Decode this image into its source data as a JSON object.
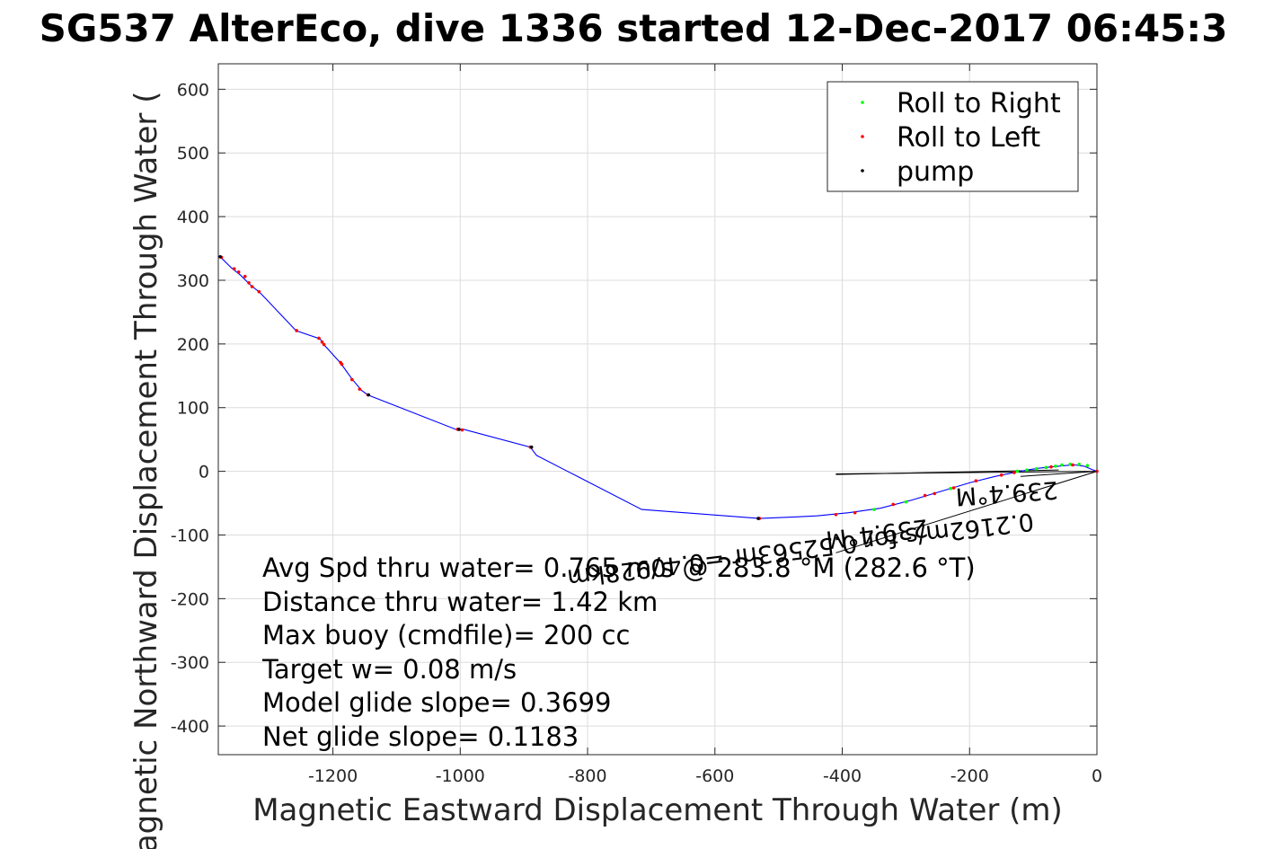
{
  "chart_data": {
    "type": "line",
    "title": "SG537 AlterEco, dive 1336 started 12-Dec-2017 06:45:3",
    "xlabel": "Magnetic Eastward Displacement Through Water (m)",
    "ylabel": "Magnetic Northward Displacement Through Water (",
    "xlim": [
      -1380,
      0
    ],
    "ylim": [
      -445,
      640
    ],
    "xticks": [
      -1200,
      -1000,
      -800,
      -600,
      -400,
      -200,
      0
    ],
    "yticks": [
      600,
      500,
      400,
      300,
      200,
      100,
      0,
      -100,
      -200,
      -300,
      -400
    ],
    "grid": true,
    "legend_position": "top-right",
    "legend": [
      {
        "label": "Roll to Right",
        "color": "#00ff00"
      },
      {
        "label": "Roll to Left",
        "color": "#ff0000"
      },
      {
        "label": "pump",
        "color": "#000000"
      }
    ],
    "track_color": "#0000ff",
    "track": [
      [
        0,
        0
      ],
      [
        -8,
        3
      ],
      [
        -20,
        8
      ],
      [
        -35,
        10
      ],
      [
        -50,
        9
      ],
      [
        -70,
        7
      ],
      [
        -90,
        5
      ],
      [
        -110,
        2
      ],
      [
        -130,
        -2
      ],
      [
        -160,
        -8
      ],
      [
        -200,
        -18
      ],
      [
        -240,
        -30
      ],
      [
        -290,
        -45
      ],
      [
        -340,
        -58
      ],
      [
        -390,
        -65
      ],
      [
        -440,
        -70
      ],
      [
        -480,
        -72
      ],
      [
        -530,
        -74
      ],
      [
        -715,
        -60
      ],
      [
        -880,
        25
      ],
      [
        -890,
        38
      ],
      [
        -995,
        66
      ],
      [
        -1005,
        65
      ],
      [
        -1145,
        120
      ],
      [
        -1155,
        127
      ],
      [
        -1170,
        145
      ],
      [
        -1188,
        170
      ],
      [
        -1215,
        200
      ],
      [
        -1220,
        208
      ],
      [
        -1258,
        221
      ],
      [
        -1315,
        281
      ],
      [
        -1330,
        293
      ],
      [
        -1345,
        308
      ],
      [
        -1360,
        320
      ],
      [
        -1375,
        335
      ],
      [
        -1380,
        338
      ]
    ],
    "roll_right": [
      [
        -15,
        9
      ],
      [
        -28,
        11
      ],
      [
        -42,
        11
      ],
      [
        -55,
        10
      ],
      [
        -65,
        8
      ],
      [
        -80,
        6
      ],
      [
        -95,
        4
      ],
      [
        -110,
        2
      ],
      [
        -125,
        0
      ],
      [
        -230,
        -27
      ],
      [
        -300,
        -48
      ],
      [
        -350,
        -60
      ]
    ],
    "roll_left": [
      [
        -1375,
        336
      ],
      [
        -1355,
        318
      ],
      [
        -1348,
        313
      ],
      [
        -1338,
        306
      ],
      [
        -1332,
        296
      ],
      [
        -1327,
        290
      ],
      [
        -1316,
        282
      ],
      [
        -1257,
        221
      ],
      [
        -1222,
        209
      ],
      [
        -1217,
        203
      ],
      [
        -1214,
        199
      ],
      [
        -1188,
        171
      ],
      [
        -1186,
        168
      ],
      [
        -1170,
        144
      ],
      [
        -1158,
        129
      ],
      [
        -1145,
        120
      ],
      [
        -1004,
        66
      ],
      [
        -997,
        65
      ],
      [
        -890,
        38
      ],
      [
        -530,
        -74
      ],
      [
        -410,
        -68
      ],
      [
        -380,
        -65
      ],
      [
        -320,
        -52
      ],
      [
        -270,
        -38
      ],
      [
        -255,
        -35
      ],
      [
        -225,
        -26
      ],
      [
        -190,
        -15
      ],
      [
        -150,
        -6
      ],
      [
        -130,
        -2
      ],
      [
        -72,
        7
      ],
      [
        -38,
        10
      ],
      [
        0,
        0
      ]
    ],
    "pump": [
      [
        -1002,
        66
      ],
      [
        -888,
        38
      ],
      [
        -532,
        -74
      ],
      [
        -1377,
        337
      ],
      [
        -1144,
        120
      ]
    ],
    "current_lines": [
      [
        [
          0,
          0
        ],
        [
          -410,
          -4
        ]
      ],
      [
        [
          0,
          0
        ],
        [
          -410,
          -128
        ]
      ],
      [
        [
          0,
          0
        ],
        [
          -120,
          -8
        ]
      ],
      [
        [
          -60,
          2
        ],
        [
          -410,
          -5
        ]
      ]
    ],
    "annotations_flipped": [
      "0.2162m/s for 0.52563hr =0.40928km",
      "239.4°M"
    ],
    "text_box": [
      "Avg Spd thru water=  0.765 m/s @ 283.8 °M (282.6 °T)",
      "Distance thru water=  1.42 km",
      "Max buoy (cmdfile)= 200 cc",
      "Target w= 0.08 m/s",
      "Model glide slope= 0.3699",
      "Net glide slope= 0.1183"
    ]
  }
}
